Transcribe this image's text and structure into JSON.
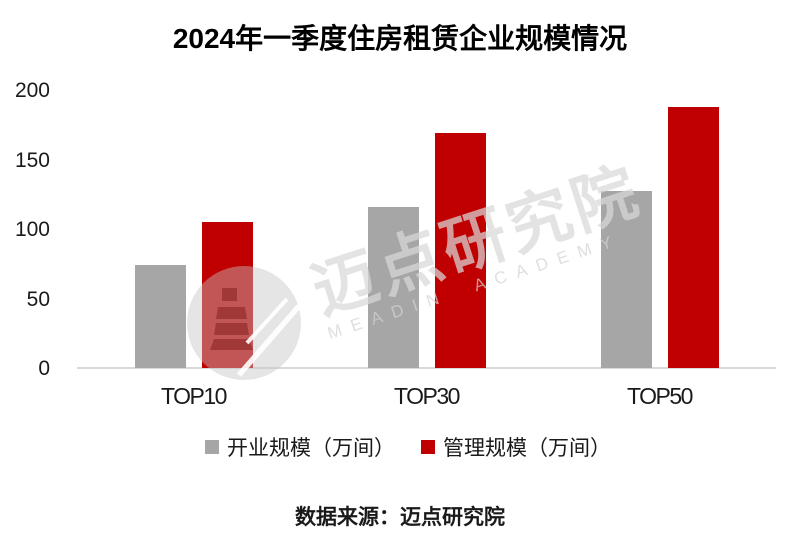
{
  "chart_data": {
    "type": "bar",
    "title": "2024年一季度住房租赁企业规模情况",
    "categories": [
      "TOP10",
      "TOP30",
      "TOP50"
    ],
    "series": [
      {
        "name": "开业规模（万间）",
        "color": "#a6a6a6",
        "values": [
          74,
          116,
          127
        ]
      },
      {
        "name": "管理规模（万间）",
        "color": "#c00000",
        "values": [
          105,
          169,
          188
        ]
      }
    ],
    "ylim": [
      0,
      200
    ],
    "yticks": [
      0,
      50,
      100,
      150,
      200
    ],
    "grid": false,
    "legend_position": "bottom"
  },
  "footer": {
    "source_text": "数据来源：迈点研究院"
  },
  "watermark": {
    "cjk": "迈点研究院",
    "latin": "MEADIN ACADEMY",
    "color": "#d9d9d9"
  }
}
